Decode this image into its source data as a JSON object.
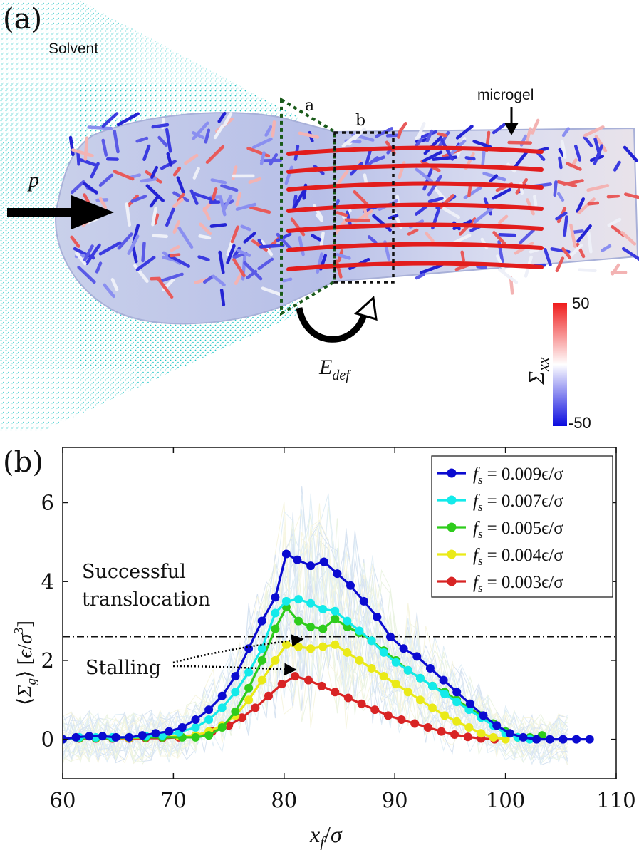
{
  "panel_a": {
    "label": "(a)",
    "solvent_label": "Solvent",
    "microgel_label": "microgel",
    "pressure_label": "p",
    "region_a_label": "a",
    "region_b_label": "b",
    "energy_label_main": "E",
    "energy_label_sub": "def",
    "colorbar": {
      "title_main": "Σ",
      "title_sub": "xx",
      "max_label": "50",
      "min_label": "-50",
      "colors": [
        "#0a0adf",
        "#ffffff",
        "#ef1c1c"
      ]
    },
    "colors": {
      "solvent": "#23c6c6",
      "frame_dotted": "#1a5a1a",
      "box_dotted": "#111111"
    }
  },
  "panel_b": {
    "label": "(b)",
    "annotation_success_line1": "Successful",
    "annotation_success_line2": "translocation",
    "annotation_stall": "Stalling",
    "ylabel": "⟨Σ_g⟩ [ϵ/σ³]",
    "xlabel": "x_f/σ"
  },
  "chart_data": {
    "type": "line",
    "xlabel": "x_f/σ",
    "ylabel": "⟨Σ_g⟩ [ϵ/σ³]",
    "xlim": [
      60,
      110
    ],
    "ylim": [
      -1,
      7.4
    ],
    "xticks": [
      "60",
      "70",
      "80",
      "90",
      "100",
      "110"
    ],
    "yticks": [
      "0",
      "2",
      "4",
      "6"
    ],
    "threshold_y": 2.6,
    "legend_position": "top-right",
    "series": [
      {
        "name": "f_s = 0.009ϵ/σ",
        "legend_text": "= 0.009ϵ/σ",
        "color": "#0b0bd0",
        "x": [
          60,
          61.2,
          62.4,
          63.6,
          64.8,
          66,
          67.2,
          68.4,
          69.6,
          70.8,
          72,
          73.2,
          74.4,
          75.6,
          76.8,
          78,
          79.2,
          80.2,
          81.2,
          82.4,
          83.6,
          84.8,
          86,
          87.2,
          88.4,
          89.6,
          90.8,
          92,
          93.2,
          94.4,
          95.6,
          96.8,
          98,
          99.2,
          100.4,
          101.6,
          102.8,
          104,
          105.2,
          106.4,
          107.6
        ],
        "y": [
          0,
          0.05,
          0.08,
          0.08,
          0.05,
          0.05,
          0.1,
          0.15,
          0.2,
          0.3,
          0.5,
          0.75,
          1.1,
          1.6,
          2.3,
          3.0,
          3.6,
          4.7,
          4.55,
          4.4,
          4.5,
          4.2,
          3.9,
          3.5,
          3.1,
          2.6,
          2.3,
          2.1,
          1.8,
          1.5,
          1.2,
          0.9,
          0.6,
          0.35,
          0.15,
          0.05,
          0,
          0,
          0,
          0,
          0
        ]
      },
      {
        "name": "f_s = 0.007ϵ/σ",
        "legend_text": "= 0.007ϵ/σ",
        "color": "#14eaea",
        "x": [
          60,
          61.5,
          63,
          64.5,
          66,
          67.5,
          69,
          70.5,
          72,
          73.2,
          74.4,
          75.6,
          76.8,
          78,
          79.2,
          80.2,
          81.3,
          82.4,
          83.5,
          84.6,
          85.7,
          86.8,
          87.9,
          89,
          90.1,
          91.2,
          92.3,
          93.4,
          94.5,
          95.6,
          96.7,
          97.8,
          98.9,
          100,
          101.1,
          102.2
        ],
        "y": [
          0,
          0.05,
          0.05,
          0.05,
          0.05,
          0.08,
          0.1,
          0.18,
          0.3,
          0.5,
          0.8,
          1.2,
          1.7,
          2.3,
          3.2,
          3.5,
          3.55,
          3.45,
          3.3,
          3.25,
          3.0,
          2.75,
          2.5,
          2.2,
          1.95,
          1.75,
          1.55,
          1.35,
          1.15,
          0.95,
          0.75,
          0.55,
          0.35,
          0.15,
          0.05,
          0
        ]
      },
      {
        "name": "f_s = 0.005ϵ/σ",
        "legend_text": "= 0.005ϵ/σ",
        "color": "#2ecc1c",
        "x": [
          60,
          61.5,
          63,
          64.5,
          66,
          67.5,
          69,
          70.8,
          72,
          73.2,
          74.4,
          75.6,
          76.8,
          78,
          79.2,
          80.2,
          81.3,
          82.4,
          83.5,
          84.6,
          85.7,
          86.8,
          87.9,
          89,
          90.1,
          91.2,
          92.3,
          93.4,
          94.5,
          95.6,
          96.7,
          97.8,
          98.9,
          100,
          101.1,
          102.2,
          103.3
        ],
        "y": [
          0,
          0.03,
          0.03,
          0.03,
          0.05,
          0.05,
          0.05,
          0.05,
          0.05,
          0.1,
          0.3,
          0.7,
          1.3,
          2.0,
          2.8,
          3.35,
          3.0,
          2.85,
          2.8,
          3.05,
          2.85,
          2.7,
          2.5,
          2.25,
          2.0,
          1.75,
          1.55,
          1.35,
          1.2,
          1.0,
          0.8,
          0.6,
          0.4,
          0.2,
          0.05,
          0.05,
          0.1
        ]
      },
      {
        "name": "f_s = 0.004ϵ/σ",
        "legend_text": "= 0.004ϵ/σ",
        "color": "#eaea18",
        "x": [
          60,
          61.5,
          63,
          64.5,
          66,
          67.5,
          69,
          70.5,
          72,
          73.2,
          74.4,
          75.6,
          76.8,
          78,
          79.2,
          80.2,
          81.3,
          82.4,
          83.5,
          84.6,
          85.7,
          86.8,
          87.9,
          89,
          90.1,
          91.2,
          92.3,
          93.4,
          94.5,
          95.6,
          96.7,
          97.8,
          98.9,
          100
        ],
        "y": [
          0,
          0.03,
          0.03,
          0.03,
          0.03,
          0.05,
          0.05,
          0.08,
          0.1,
          0.2,
          0.35,
          0.6,
          1.0,
          1.5,
          2.0,
          2.4,
          2.35,
          2.3,
          2.35,
          2.4,
          2.2,
          2.0,
          1.8,
          1.6,
          1.4,
          1.2,
          1.0,
          0.8,
          0.6,
          0.45,
          0.3,
          0.15,
          0.05,
          0
        ]
      },
      {
        "name": "f_s = 0.003ϵ/σ",
        "legend_text": "= 0.003ϵ/σ",
        "color": "#d82424",
        "x": [
          60,
          61.5,
          63,
          64.5,
          66,
          67.5,
          69,
          70.5,
          72,
          73.5,
          75,
          76.2,
          77.4,
          78.6,
          79.8,
          81,
          82.2,
          83.4,
          84.6,
          85.8,
          87,
          88.2,
          89.4,
          90.6,
          91.8,
          93,
          94.2,
          95.4,
          96.6,
          97.8,
          99
        ],
        "y": [
          0,
          0.02,
          0.02,
          0.02,
          0.02,
          0.03,
          0.03,
          0.05,
          0.1,
          0.2,
          0.35,
          0.55,
          0.8,
          1.1,
          1.4,
          1.6,
          1.5,
          1.35,
          1.2,
          1.05,
          0.9,
          0.75,
          0.6,
          0.5,
          0.4,
          0.3,
          0.2,
          0.12,
          0.06,
          0.02,
          0
        ]
      }
    ]
  }
}
